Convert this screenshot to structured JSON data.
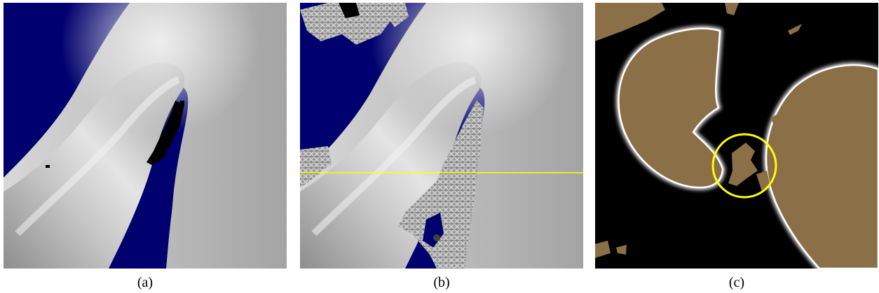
{
  "captions": {
    "a": "(a)",
    "b": "(b)",
    "c": "(c)"
  },
  "colors": {
    "background_blue": "#00006e",
    "surface_gray": "#b4b4b4",
    "section_line": "#ffff00",
    "region_tan": "#8b6f47",
    "black": "#000000",
    "white": "#ffffff"
  }
}
